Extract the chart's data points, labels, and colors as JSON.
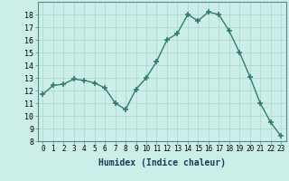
{
  "x": [
    0,
    1,
    2,
    3,
    4,
    5,
    6,
    7,
    8,
    9,
    10,
    11,
    12,
    13,
    14,
    15,
    16,
    17,
    18,
    19,
    20,
    21,
    22,
    23
  ],
  "y": [
    11.7,
    12.4,
    12.5,
    12.9,
    12.8,
    12.6,
    12.2,
    11.0,
    10.5,
    12.1,
    13.0,
    14.3,
    16.0,
    16.5,
    18.0,
    17.5,
    18.2,
    18.0,
    16.7,
    15.0,
    13.1,
    11.0,
    9.5,
    8.4
  ],
  "xlabel": "Humidex (Indice chaleur)",
  "ylim": [
    8,
    19
  ],
  "xlim": [
    -0.5,
    23.5
  ],
  "yticks": [
    8,
    9,
    10,
    11,
    12,
    13,
    14,
    15,
    16,
    17,
    18
  ],
  "xticks": [
    0,
    1,
    2,
    3,
    4,
    5,
    6,
    7,
    8,
    9,
    10,
    11,
    12,
    13,
    14,
    15,
    16,
    17,
    18,
    19,
    20,
    21,
    22,
    23
  ],
  "line_color": "#2e7d6e",
  "marker_color": "#2e7d6e",
  "bg_color": "#cceee8",
  "grid_color": "#aad4cc",
  "xlabel_color": "#1a3a5c"
}
